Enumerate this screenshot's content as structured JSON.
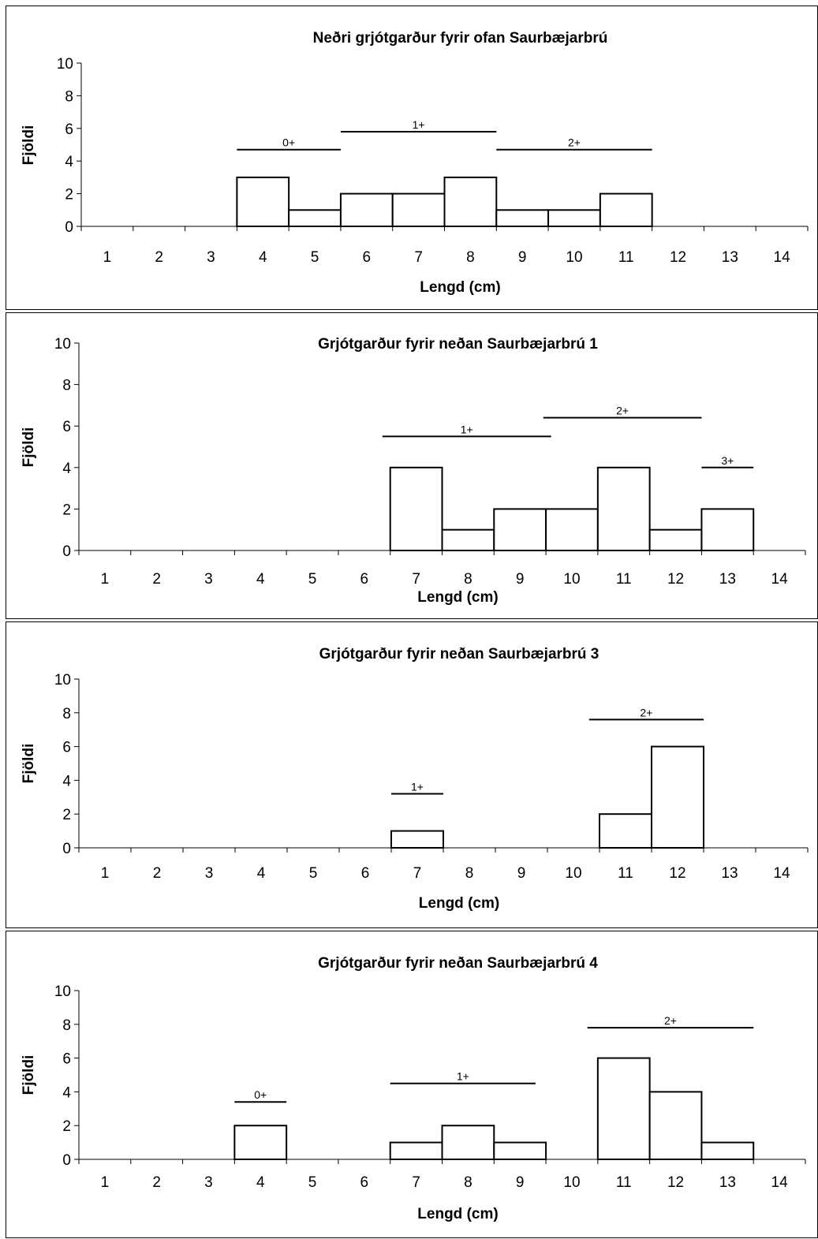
{
  "chart_data": [
    {
      "type": "bar",
      "title": "Neðri grjótgarður fyrir ofan Saurbæjarbrú",
      "xlabel": "Lengd (cm)",
      "ylabel": "Fjöldi",
      "categories": [
        "1",
        "2",
        "3",
        "4",
        "5",
        "6",
        "7",
        "8",
        "9",
        "10",
        "11",
        "12",
        "13",
        "14"
      ],
      "values": [
        0,
        0,
        0,
        3,
        1,
        2,
        2,
        3,
        1,
        1,
        2,
        0,
        0,
        0
      ],
      "ylim": [
        0,
        10
      ],
      "yticks": [
        "0",
        "2",
        "4",
        "6",
        "8",
        "10"
      ],
      "age_groups": [
        {
          "label": "0+",
          "from": 3.5,
          "to": 5.5,
          "level": 4.7
        },
        {
          "label": "1+",
          "from": 5.5,
          "to": 8.5,
          "level": 5.8
        },
        {
          "label": "2+",
          "from": 8.5,
          "to": 11.5,
          "level": 4.7
        }
      ]
    },
    {
      "type": "bar",
      "title": "Grjótgarður fyrir neðan Saurbæjarbrú 1",
      "xlabel": "Lengd (cm)",
      "ylabel": "Fjöldi",
      "categories": [
        "1",
        "2",
        "3",
        "4",
        "5",
        "6",
        "7",
        "8",
        "9",
        "10",
        "11",
        "12",
        "13",
        "14"
      ],
      "values": [
        0,
        0,
        0,
        0,
        0,
        0,
        4,
        1,
        2,
        2,
        4,
        1,
        2,
        0
      ],
      "ylim": [
        0,
        10
      ],
      "yticks": [
        "0",
        "2",
        "4",
        "6",
        "8",
        "10"
      ],
      "age_groups": [
        {
          "label": "1+",
          "from": 6.35,
          "to": 9.6,
          "level": 5.5
        },
        {
          "label": "2+",
          "from": 9.45,
          "to": 12.5,
          "level": 6.4
        },
        {
          "label": "3+",
          "from": 12.5,
          "to": 13.5,
          "level": 4.0
        }
      ]
    },
    {
      "type": "bar",
      "title": "Grjótgarður fyrir neðan Saurbæjarbrú 3",
      "xlabel": "Lengd (cm)",
      "ylabel": "Fjöldi",
      "categories": [
        "1",
        "2",
        "3",
        "4",
        "5",
        "6",
        "7",
        "8",
        "9",
        "10",
        "11",
        "12",
        "13",
        "14"
      ],
      "values": [
        0,
        0,
        0,
        0,
        0,
        0,
        1,
        0,
        0,
        0,
        2,
        6,
        0,
        0
      ],
      "ylim": [
        0,
        10
      ],
      "yticks": [
        "0",
        "2",
        "4",
        "6",
        "8",
        "10"
      ],
      "age_groups": [
        {
          "label": "1+",
          "from": 6.5,
          "to": 7.5,
          "level": 3.2
        },
        {
          "label": "2+",
          "from": 10.3,
          "to": 12.5,
          "level": 7.6
        }
      ]
    },
    {
      "type": "bar",
      "title": "Grjótgarður fyrir neðan Saurbæjarbrú 4",
      "xlabel": "Lengd (cm)",
      "ylabel": "Fjöldi",
      "categories": [
        "1",
        "2",
        "3",
        "4",
        "5",
        "6",
        "7",
        "8",
        "9",
        "10",
        "11",
        "12",
        "13",
        "14"
      ],
      "values": [
        0,
        0,
        0,
        2,
        0,
        0,
        1,
        2,
        1,
        0,
        6,
        4,
        1,
        0
      ],
      "ylim": [
        0,
        10
      ],
      "yticks": [
        "0",
        "2",
        "4",
        "6",
        "8",
        "10"
      ],
      "age_groups": [
        {
          "label": "0+",
          "from": 3.5,
          "to": 4.5,
          "level": 3.4
        },
        {
          "label": "1+",
          "from": 6.5,
          "to": 9.3,
          "level": 4.5
        },
        {
          "label": "2+",
          "from": 10.3,
          "to": 13.5,
          "level": 7.8
        }
      ]
    }
  ]
}
